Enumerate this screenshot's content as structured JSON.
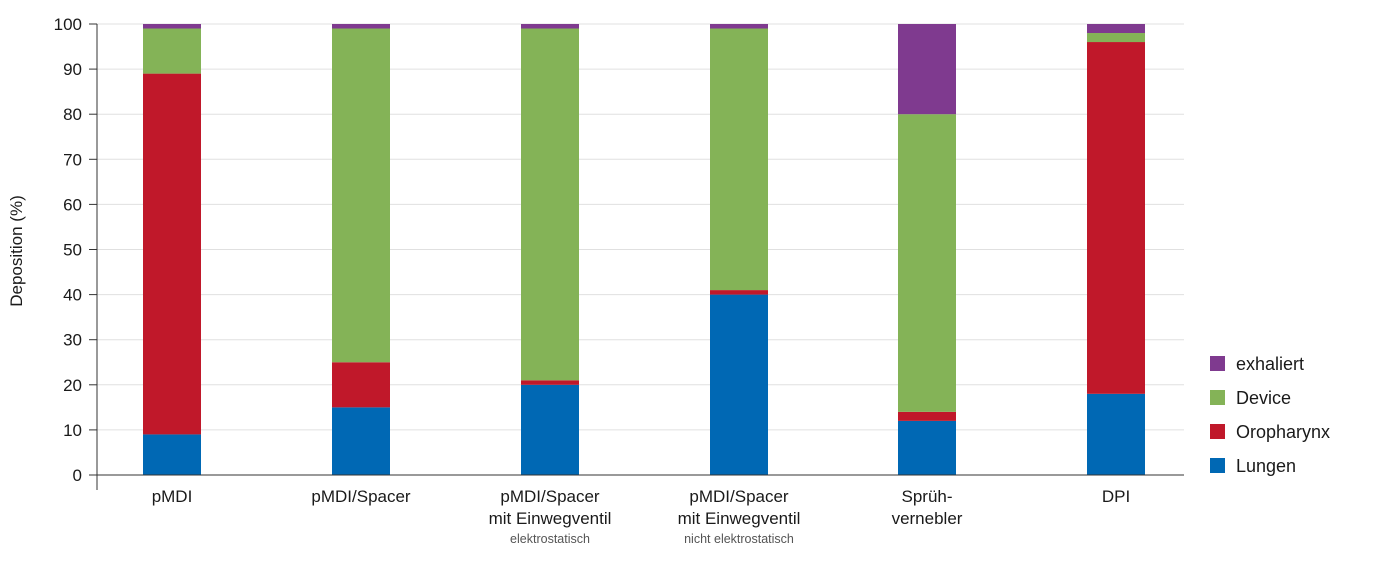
{
  "chart_data": {
    "type": "bar",
    "stacked": true,
    "title": "",
    "xlabel": "",
    "ylabel": "Deposition (%)",
    "ylim": [
      0,
      100
    ],
    "yticks": [
      0,
      10,
      20,
      30,
      40,
      50,
      60,
      70,
      80,
      90,
      100
    ],
    "grid": true,
    "legend_position": "right",
    "categories": [
      {
        "line1": "pMDI",
        "line2": "",
        "sub": ""
      },
      {
        "line1": "pMDI/Spacer",
        "line2": "",
        "sub": ""
      },
      {
        "line1": "pMDI/Spacer",
        "line2": "mit Einwegventil",
        "sub": "elektrostatisch"
      },
      {
        "line1": "pMDI/Spacer",
        "line2": "mit Einwegventil",
        "sub": "nicht elektrostatisch"
      },
      {
        "line1": "Sprüh-",
        "line2": "vernebler",
        "sub": ""
      },
      {
        "line1": "DPI",
        "line2": "",
        "sub": ""
      }
    ],
    "series": [
      {
        "name": "Lungen",
        "color": "#0068b4",
        "values": [
          9,
          15,
          20,
          40,
          12,
          18
        ]
      },
      {
        "name": "Oropharynx",
        "color": "#c0182a",
        "values": [
          80,
          10,
          1,
          1,
          2,
          78
        ]
      },
      {
        "name": "Device",
        "color": "#84b357",
        "values": [
          10,
          74,
          78,
          58,
          66,
          2
        ]
      },
      {
        "name": "exhaliert",
        "color": "#7f3a8f",
        "values": [
          1,
          1,
          1,
          1,
          20,
          2
        ]
      }
    ],
    "legend_order": [
      "exhaliert",
      "Device",
      "Oropharynx",
      "Lungen"
    ]
  }
}
